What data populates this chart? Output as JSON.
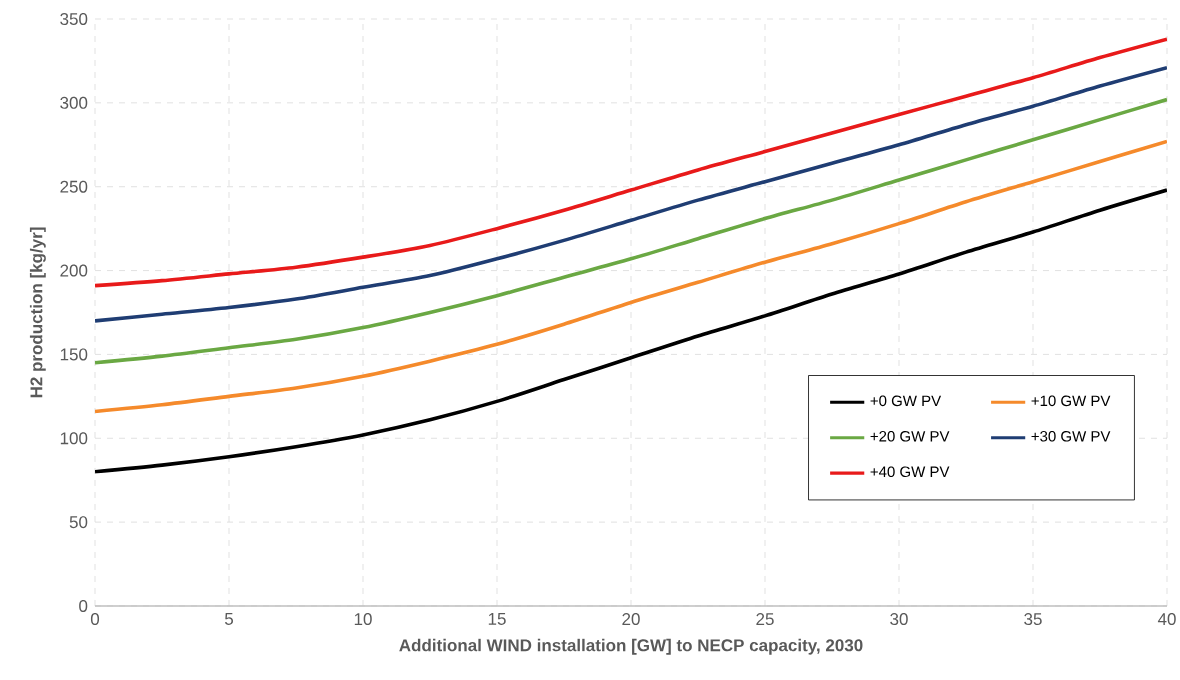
{
  "chart_data": {
    "type": "line",
    "xlabel": "Additional WIND installation [GW] to NECP capacity, 2030",
    "ylabel": "H2 production [kg/yr]",
    "x": [
      0,
      2.5,
      5,
      7.5,
      10,
      12.5,
      15,
      17.5,
      20,
      22.5,
      25,
      27.5,
      30,
      32.5,
      35,
      37.5,
      40
    ],
    "series": [
      {
        "name": "+0 GW PV",
        "color": "#000000",
        "values": [
          80,
          84,
          89,
          95,
          102,
          111,
          122,
          135,
          148,
          161,
          173,
          186,
          198,
          211,
          223,
          236,
          248
        ]
      },
      {
        "name": "+10 GW PV",
        "color": "#f58a2b",
        "values": [
          116,
          120,
          125,
          130,
          137,
          146,
          156,
          168,
          181,
          193,
          205,
          216,
          228,
          241,
          253,
          265,
          277
        ]
      },
      {
        "name": "+20 GW PV",
        "color": "#6aa843",
        "values": [
          145,
          149,
          154,
          159,
          166,
          175,
          185,
          196,
          207,
          219,
          231,
          242,
          254,
          266,
          278,
          290,
          302
        ]
      },
      {
        "name": "+30 GW PV",
        "color": "#1f3d73",
        "values": [
          170,
          174,
          178,
          183,
          190,
          197,
          207,
          218,
          230,
          242,
          253,
          264,
          275,
          287,
          298,
          310,
          321
        ]
      },
      {
        "name": "+40 GW PV",
        "color": "#e81a1a",
        "values": [
          191,
          194,
          198,
          202,
          208,
          215,
          225,
          236,
          248,
          260,
          271,
          282,
          293,
          304,
          315,
          327,
          338
        ]
      }
    ],
    "xlim": [
      0,
      40
    ],
    "xticks": [
      0,
      5,
      10,
      15,
      20,
      25,
      30,
      35,
      40
    ],
    "ylim": [
      0,
      350
    ],
    "yticks": [
      0,
      50,
      100,
      150,
      200,
      250,
      300,
      350
    ],
    "grid": true,
    "legend": "bottom right",
    "marker": "none",
    "line_style": "solid"
  }
}
